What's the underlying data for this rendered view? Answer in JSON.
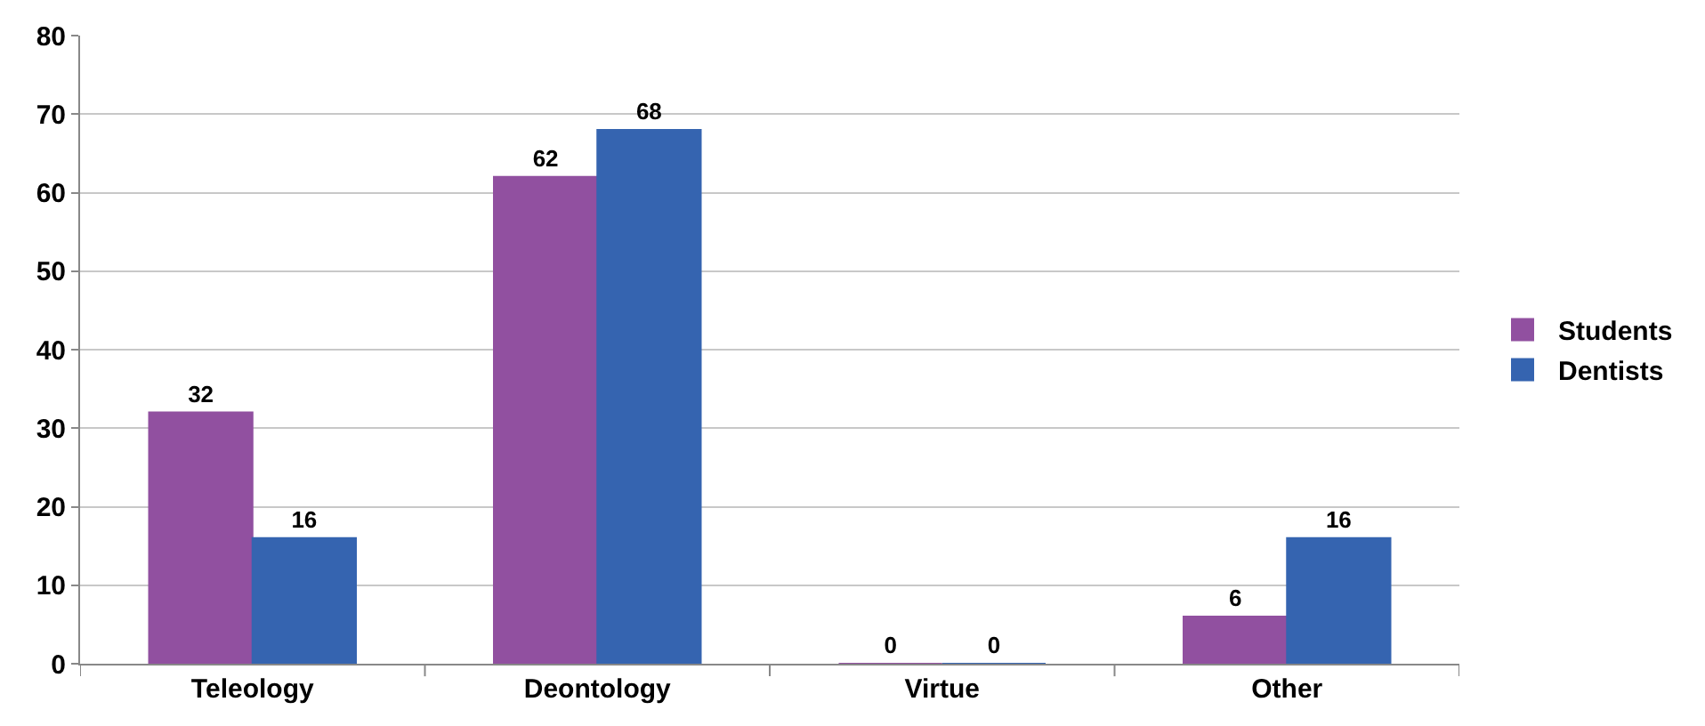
{
  "chart_data": {
    "type": "bar",
    "categories": [
      "Teleology",
      "Deontology",
      "Virtue",
      "Other"
    ],
    "series": [
      {
        "name": "Students",
        "color": "#9150a0",
        "values": [
          32,
          62,
          0,
          6
        ]
      },
      {
        "name": "Dentists",
        "color": "#3564b0",
        "values": [
          16,
          68,
          0,
          16
        ]
      }
    ],
    "ylim": [
      0,
      80
    ],
    "yticks": [
      0,
      10,
      20,
      30,
      40,
      50,
      60,
      70,
      80
    ],
    "grid": "y",
    "legend": "right",
    "data_labels": true
  }
}
